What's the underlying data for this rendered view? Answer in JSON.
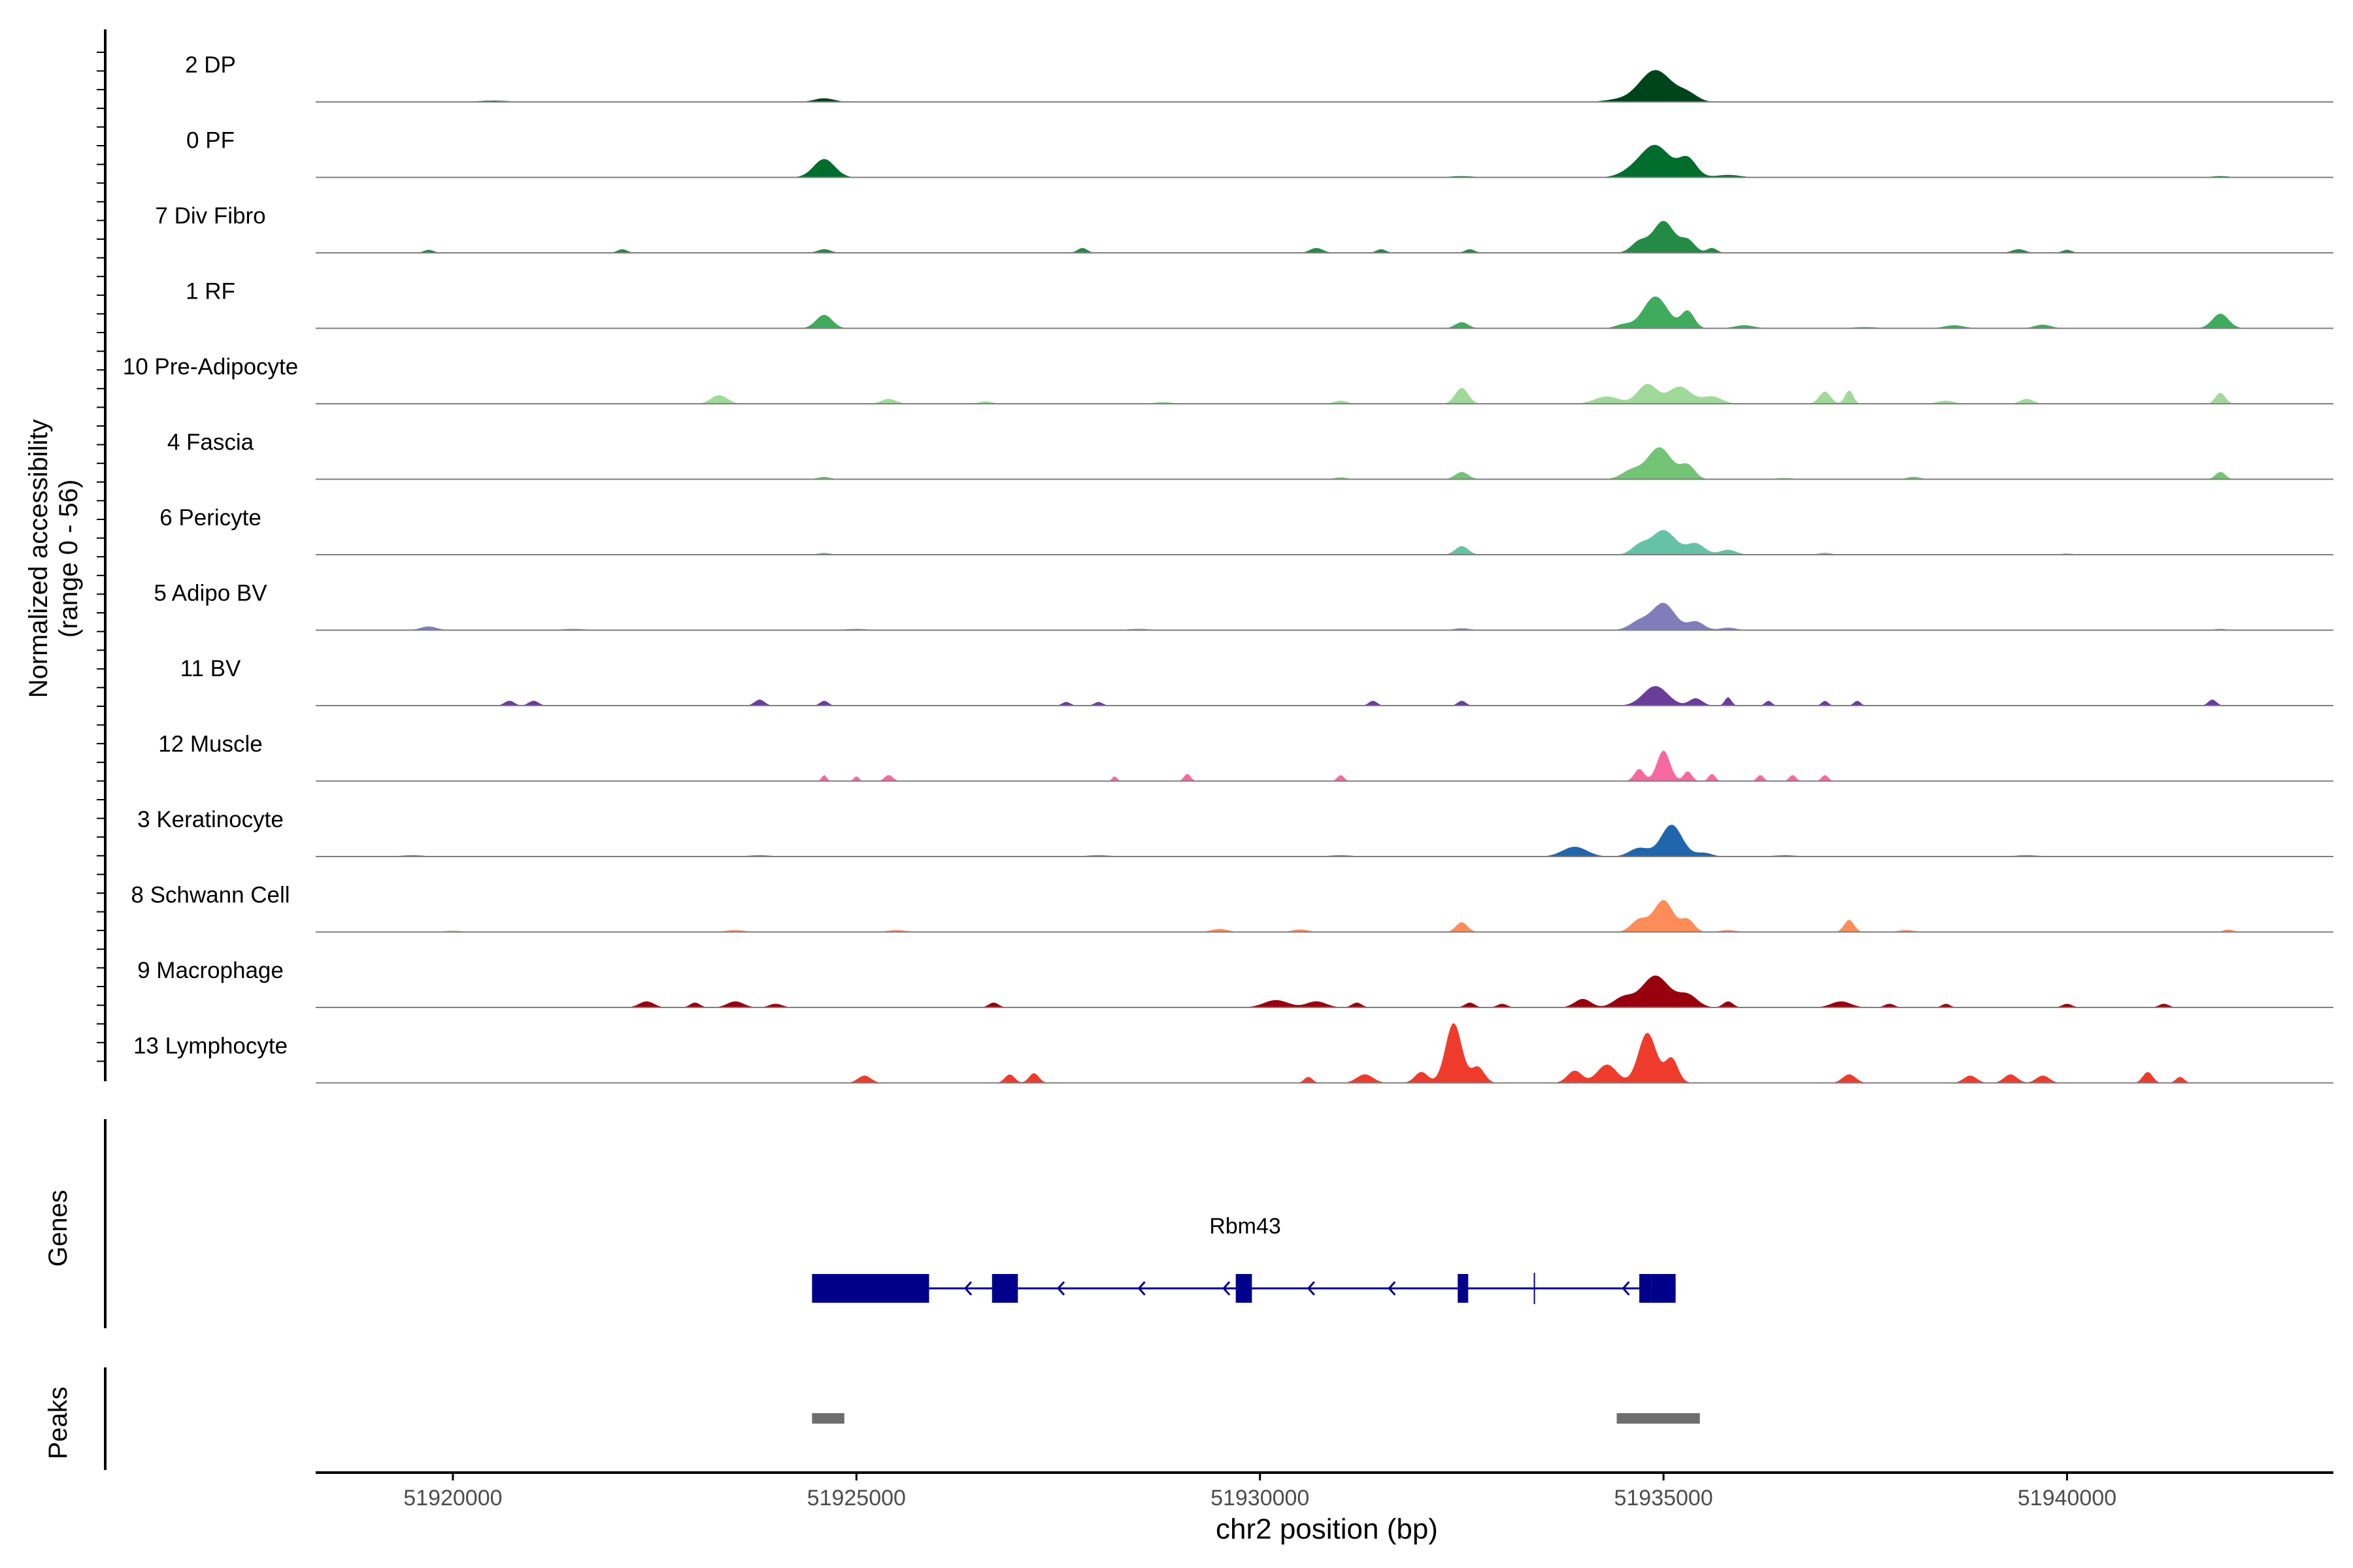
{
  "chart_data": {
    "type": "area",
    "track_type": "genome-coverage",
    "ylabel_line1": "Normalized accessibility",
    "ylabel_line2": "(range 0 - 56)",
    "y_range": [
      0,
      56
    ],
    "xlabel": "chr2 position (bp)",
    "xlim": [
      51918300,
      51943300
    ],
    "x_ticks": [
      51920000,
      51925000,
      51930000,
      51935000,
      51940000
    ],
    "x_tick_labels": [
      "51920000",
      "51925000",
      "51930000",
      "51935000",
      "51940000"
    ],
    "series": [
      {
        "name": "2 DP",
        "color": "#00441b",
        "peaks": [
          [
            51920500,
            2,
            200
          ],
          [
            51923500,
            1,
            200
          ],
          [
            51924600,
            6,
            120
          ],
          [
            51926600,
            1,
            150
          ],
          [
            51928500,
            1,
            150
          ],
          [
            51931000,
            1,
            200
          ],
          [
            51932600,
            1,
            150
          ],
          [
            51934400,
            3,
            150
          ],
          [
            51934900,
            52,
            200
          ],
          [
            51935300,
            12,
            120
          ],
          [
            51936500,
            1,
            200
          ],
          [
            51938200,
            1,
            150
          ],
          [
            51941900,
            1,
            150
          ]
        ]
      },
      {
        "name": "0 PF",
        "color": "#006d2c",
        "peaks": [
          [
            51924600,
            30,
            130
          ],
          [
            51928000,
            1,
            150
          ],
          [
            51932500,
            2,
            150
          ],
          [
            51934600,
            8,
            150
          ],
          [
            51934900,
            52,
            180
          ],
          [
            51935300,
            30,
            110
          ],
          [
            51935800,
            4,
            150
          ],
          [
            51938000,
            1,
            150
          ],
          [
            51941900,
            2,
            120
          ]
        ]
      },
      {
        "name": "7 Div Fibro",
        "color": "#238b45",
        "peaks": [
          [
            51919700,
            5,
            60
          ],
          [
            51922100,
            6,
            60
          ],
          [
            51924600,
            6,
            80
          ],
          [
            51927800,
            8,
            60
          ],
          [
            51930700,
            8,
            80
          ],
          [
            51931500,
            6,
            60
          ],
          [
            51932600,
            6,
            60
          ],
          [
            51934700,
            18,
            100
          ],
          [
            51935000,
            52,
            130
          ],
          [
            51935300,
            20,
            90
          ],
          [
            51935600,
            8,
            60
          ],
          [
            51939400,
            6,
            80
          ],
          [
            51940000,
            5,
            60
          ]
        ]
      },
      {
        "name": "1 RF",
        "color": "#41ab5d",
        "peaks": [
          [
            51921000,
            1,
            200
          ],
          [
            51924600,
            22,
            100
          ],
          [
            51927000,
            1,
            200
          ],
          [
            51932500,
            10,
            80
          ],
          [
            51934500,
            6,
            100
          ],
          [
            51934900,
            52,
            150
          ],
          [
            51935300,
            28,
            80
          ],
          [
            51936000,
            5,
            120
          ],
          [
            51937500,
            2,
            150
          ],
          [
            51938600,
            5,
            120
          ],
          [
            51939700,
            6,
            100
          ],
          [
            51941900,
            24,
            100
          ]
        ]
      },
      {
        "name": "10 Pre-Adipocyte",
        "color": "#a1d99b",
        "peaks": [
          [
            51923300,
            14,
            100
          ],
          [
            51925400,
            8,
            90
          ],
          [
            51926600,
            4,
            80
          ],
          [
            51928800,
            3,
            100
          ],
          [
            51931000,
            5,
            80
          ],
          [
            51932500,
            26,
            80
          ],
          [
            51934300,
            12,
            150
          ],
          [
            51934800,
            32,
            120
          ],
          [
            51935200,
            28,
            140
          ],
          [
            51935600,
            12,
            120
          ],
          [
            51937000,
            20,
            70
          ],
          [
            51937300,
            22,
            50
          ],
          [
            51938500,
            5,
            100
          ],
          [
            51939500,
            8,
            80
          ],
          [
            51941900,
            18,
            60
          ]
        ]
      },
      {
        "name": "4 Fascia",
        "color": "#74c476",
        "peaks": [
          [
            51924600,
            4,
            80
          ],
          [
            51931000,
            3,
            80
          ],
          [
            51932500,
            12,
            80
          ],
          [
            51934600,
            14,
            120
          ],
          [
            51934950,
            52,
            150
          ],
          [
            51935300,
            22,
            90
          ],
          [
            51936500,
            2,
            120
          ],
          [
            51938100,
            4,
            80
          ],
          [
            51941900,
            12,
            60
          ]
        ]
      },
      {
        "name": "6 Pericyte",
        "color": "#66c2a4",
        "peaks": [
          [
            51924600,
            3,
            80
          ],
          [
            51932500,
            14,
            80
          ],
          [
            51934700,
            14,
            100
          ],
          [
            51935000,
            40,
            150
          ],
          [
            51935400,
            18,
            110
          ],
          [
            51935800,
            8,
            100
          ],
          [
            51937000,
            3,
            80
          ],
          [
            51940000,
            2,
            80
          ]
        ]
      },
      {
        "name": "5 Adipo BV",
        "color": "#807dba",
        "peaks": [
          [
            51919700,
            6,
            100
          ],
          [
            51921500,
            2,
            150
          ],
          [
            51925000,
            2,
            150
          ],
          [
            51928500,
            2,
            150
          ],
          [
            51932500,
            3,
            100
          ],
          [
            51934700,
            14,
            120
          ],
          [
            51935000,
            44,
            140
          ],
          [
            51935400,
            14,
            100
          ],
          [
            51935800,
            4,
            100
          ],
          [
            51941900,
            2,
            80
          ]
        ]
      },
      {
        "name": "11 BV",
        "color": "#6a3d9a",
        "peaks": [
          [
            51920700,
            8,
            60
          ],
          [
            51921000,
            8,
            60
          ],
          [
            51923800,
            10,
            60
          ],
          [
            51924600,
            8,
            50
          ],
          [
            51927600,
            6,
            50
          ],
          [
            51928000,
            6,
            50
          ],
          [
            51931400,
            8,
            50
          ],
          [
            51932500,
            8,
            50
          ],
          [
            51934900,
            32,
            150
          ],
          [
            51935400,
            12,
            80
          ],
          [
            51935800,
            14,
            40
          ],
          [
            51936300,
            8,
            40
          ],
          [
            51937000,
            8,
            40
          ],
          [
            51937400,
            8,
            40
          ],
          [
            51941800,
            10,
            50
          ]
        ]
      },
      {
        "name": "12 Muscle",
        "color": "#f768a1",
        "peaks": [
          [
            51924600,
            10,
            30
          ],
          [
            51925000,
            8,
            30
          ],
          [
            51925400,
            10,
            50
          ],
          [
            51928200,
            8,
            30
          ],
          [
            51929100,
            12,
            40
          ],
          [
            51931000,
            10,
            40
          ],
          [
            51934700,
            20,
            60
          ],
          [
            51935000,
            50,
            80
          ],
          [
            51935300,
            16,
            50
          ],
          [
            51935600,
            12,
            40
          ],
          [
            51936200,
            10,
            40
          ],
          [
            51936600,
            10,
            40
          ],
          [
            51937000,
            10,
            40
          ]
        ]
      },
      {
        "name": "3 Keratinocyte",
        "color": "#2166ac",
        "peaks": [
          [
            51919500,
            2,
            150
          ],
          [
            51921000,
            1,
            150
          ],
          [
            51923800,
            2,
            150
          ],
          [
            51924600,
            1,
            150
          ],
          [
            51928000,
            2,
            150
          ],
          [
            51931000,
            2,
            150
          ],
          [
            51933900,
            16,
            150
          ],
          [
            51934700,
            14,
            120
          ],
          [
            51935100,
            52,
            130
          ],
          [
            51935500,
            6,
            100
          ],
          [
            51936500,
            2,
            150
          ],
          [
            51939500,
            2,
            150
          ]
        ]
      },
      {
        "name": "8 Schwann Cell",
        "color": "#fc8d59",
        "peaks": [
          [
            51920000,
            2,
            120
          ],
          [
            51923500,
            3,
            120
          ],
          [
            51925500,
            3,
            120
          ],
          [
            51929500,
            5,
            100
          ],
          [
            51930500,
            4,
            100
          ],
          [
            51932500,
            16,
            70
          ],
          [
            51934700,
            20,
            100
          ],
          [
            51935000,
            52,
            120
          ],
          [
            51935300,
            20,
            80
          ],
          [
            51935800,
            3,
            100
          ],
          [
            51937300,
            20,
            60
          ],
          [
            51938000,
            3,
            100
          ],
          [
            51942000,
            4,
            60
          ]
        ]
      },
      {
        "name": "9 Macrophage",
        "color": "#99000d",
        "peaks": [
          [
            51922400,
            10,
            90
          ],
          [
            51923000,
            8,
            60
          ],
          [
            51923500,
            10,
            100
          ],
          [
            51924000,
            6,
            80
          ],
          [
            51926700,
            8,
            60
          ],
          [
            51930200,
            12,
            150
          ],
          [
            51930700,
            10,
            120
          ],
          [
            51931200,
            8,
            60
          ],
          [
            51932600,
            8,
            60
          ],
          [
            51933000,
            6,
            60
          ],
          [
            51934000,
            14,
            100
          ],
          [
            51934500,
            16,
            120
          ],
          [
            51934900,
            52,
            170
          ],
          [
            51935300,
            20,
            120
          ],
          [
            51935800,
            10,
            60
          ],
          [
            51937200,
            10,
            120
          ],
          [
            51937800,
            6,
            60
          ],
          [
            51938500,
            6,
            50
          ],
          [
            51940000,
            6,
            60
          ],
          [
            51941200,
            6,
            60
          ]
        ]
      },
      {
        "name": "13 Lymphocyte",
        "color": "#ef3b2c",
        "peaks": [
          [
            51925100,
            12,
            80
          ],
          [
            51926900,
            14,
            60
          ],
          [
            51927200,
            16,
            60
          ],
          [
            51930600,
            10,
            50
          ],
          [
            51931300,
            14,
            100
          ],
          [
            51932000,
            18,
            80
          ],
          [
            51932400,
            98,
            100
          ],
          [
            51932700,
            26,
            80
          ],
          [
            51933900,
            20,
            90
          ],
          [
            51934300,
            30,
            120
          ],
          [
            51934800,
            82,
            110
          ],
          [
            51935100,
            40,
            80
          ],
          [
            51937300,
            14,
            80
          ],
          [
            51938800,
            12,
            80
          ],
          [
            51939300,
            14,
            80
          ],
          [
            51939700,
            12,
            80
          ],
          [
            51941000,
            18,
            60
          ],
          [
            51941400,
            10,
            50
          ]
        ]
      }
    ],
    "genes": {
      "track_label": "Genes",
      "name": "Rbm43",
      "color": "#00008b",
      "span": [
        51924450,
        51935150
      ],
      "exons": [
        [
          51924450,
          51925900,
          "utr"
        ],
        [
          51926680,
          51927000,
          "cds"
        ],
        [
          51929700,
          51929900,
          "cds"
        ],
        [
          51932450,
          51932580,
          "cds"
        ],
        [
          51934700,
          51934850,
          "cds"
        ],
        [
          51934850,
          51935150,
          "utr"
        ]
      ],
      "strand": "-",
      "arrows": [
        51926350,
        51927500,
        51928500,
        51929550,
        51930600,
        51931600,
        51934500
      ]
    },
    "peaks_track": {
      "track_label": "Peaks",
      "color": "#6e6e6e",
      "regions": [
        [
          51924450,
          51924850
        ],
        [
          51934420,
          51935450
        ]
      ]
    }
  }
}
